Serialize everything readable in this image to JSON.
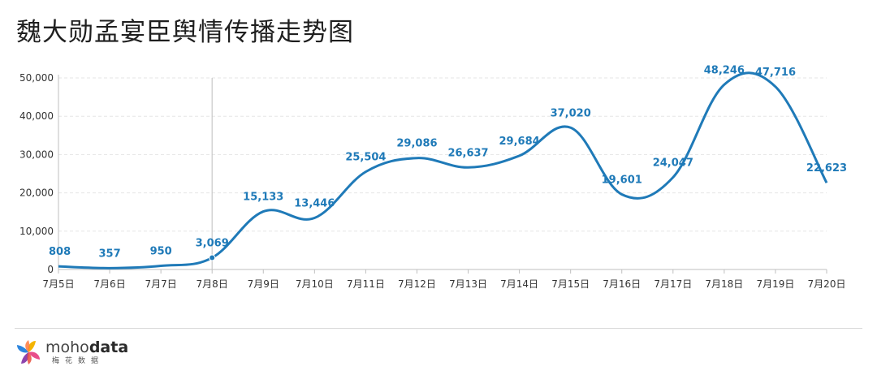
{
  "page": {
    "title": "魏大勋孟宴臣舆情传播走势图"
  },
  "logo": {
    "brand_light": "moho",
    "brand_bold": "data",
    "subtitle": "梅花数据"
  },
  "colors": {
    "line": "#1f7ab8",
    "label": "#1f7ab8",
    "grid": "#e5e5e5",
    "axis": "#bfbfbf",
    "crosshair": "#c8c8c8"
  },
  "chart_data": {
    "type": "line",
    "title": "魏大勋孟宴臣舆情传播走势图",
    "categories": [
      "7月5日",
      "7月6日",
      "7月7日",
      "7月8日",
      "7月9日",
      "7月10日",
      "7月11日",
      "7月12日",
      "7月13日",
      "7月14日",
      "7月15日",
      "7月16日",
      "7月17日",
      "7月18日",
      "7月19日",
      "7月20日"
    ],
    "series": [
      {
        "values": [
          808,
          357,
          950,
          3069,
          15133,
          13446,
          25504,
          29086,
          26637,
          29684,
          37020,
          19601,
          24047,
          48246,
          47716,
          22623
        ]
      }
    ],
    "data_labels": [
      "808",
      "357",
      "950",
      "3,069",
      "15,133",
      "13,446",
      "25,504",
      "29,086",
      "26,637",
      "29,684",
      "37,020",
      "19,601",
      "24,047",
      "48,246",
      "47,716",
      "22,623"
    ],
    "y_ticks": [
      0,
      10000,
      20000,
      30000,
      40000,
      50000
    ],
    "y_tick_labels": [
      "0",
      "10,000",
      "20,000",
      "30,000",
      "40,000",
      "50,000"
    ],
    "ylim": [
      0,
      50000
    ],
    "grid": true,
    "highlighted_category": "7月8日"
  }
}
